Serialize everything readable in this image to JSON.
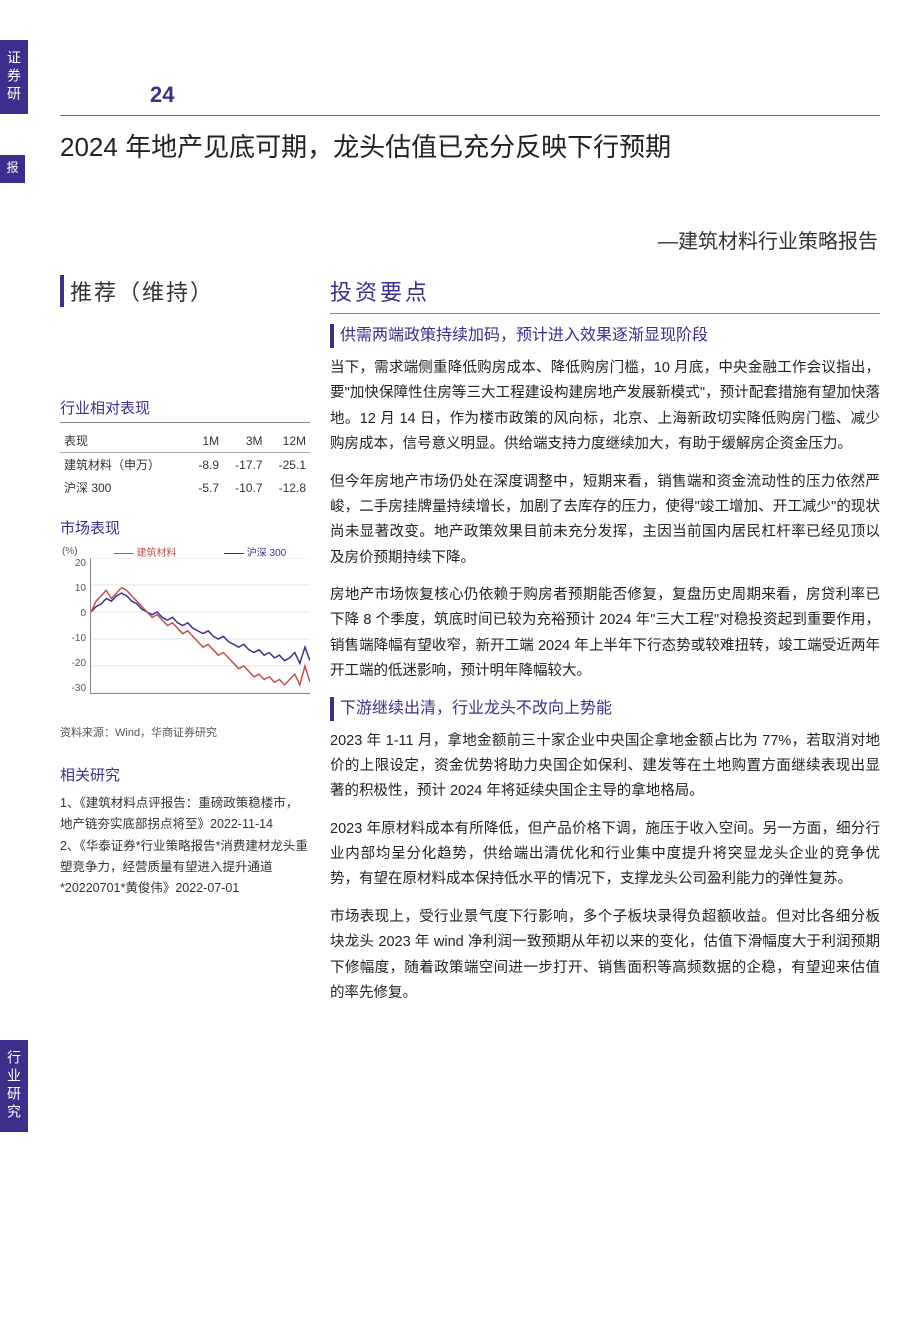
{
  "side_labels": {
    "top1": "证券研",
    "top2": "报",
    "bottom": "行业研究"
  },
  "page_number": "24",
  "title": "2024 年地产见底可期，龙头估值已充分反映下行预期",
  "subtitle": "—建筑材料行业策略报告",
  "rating": "推荐（维持）",
  "invest_points_hd": "投资要点",
  "perf_section_hd": "行业相对表现",
  "perf_table": {
    "headers": [
      "表现",
      "1M",
      "3M",
      "12M"
    ],
    "rows": [
      [
        "建筑材料（申万）",
        "-8.9",
        "-17.7",
        "-25.1"
      ],
      [
        "沪深 300",
        "-5.7",
        "-10.7",
        "-12.8"
      ]
    ]
  },
  "chart": {
    "title": "市场表现",
    "y_unit": "(%)",
    "legend": [
      "建筑材料",
      "沪深 300"
    ],
    "ylim": [
      -30,
      20
    ],
    "yticks": [
      "20",
      "10",
      "0",
      "-10",
      "-20",
      "-30"
    ],
    "colors": {
      "series1": "#c0504d",
      "series2": "#3d2e8c",
      "grid": "#cccccc",
      "bg": "#ffffff"
    },
    "series1_points": [
      0,
      4,
      6,
      8,
      5,
      7,
      9,
      8,
      6,
      4,
      2,
      0,
      -2,
      -1,
      -3,
      -5,
      -4,
      -6,
      -8,
      -7,
      -9,
      -11,
      -13,
      -12,
      -14,
      -16,
      -15,
      -17,
      -19,
      -21,
      -20,
      -22,
      -24,
      -23,
      -25,
      -24,
      -26,
      -25,
      -27,
      -25,
      -23,
      -27,
      -20,
      -26
    ],
    "series2_points": [
      0,
      2,
      3,
      5,
      4,
      6,
      7,
      6,
      4,
      3,
      1,
      0,
      -1,
      0,
      -2,
      -3,
      -2,
      -4,
      -5,
      -4,
      -6,
      -7,
      -8,
      -7,
      -9,
      -10,
      -9,
      -11,
      -12,
      -13,
      -12,
      -14,
      -15,
      -14,
      -16,
      -15,
      -17,
      -16,
      -18,
      -17,
      -15,
      -19,
      -13,
      -18
    ],
    "line_width": 1.5,
    "fontsize": 10
  },
  "source": "资料来源：Wind，华商证券研究",
  "related_hd": "相关研究",
  "related_body": "1、《建筑材料点评报告：重磅政策稳楼市，地产链夯实底部拐点将至》2022-11-14\n2、《华泰证券*行业策略报告*消费建材龙头重塑竞争力，经营质量有望进入提升通道*20220701*黄俊伟》2022-07-01",
  "sections": [
    {
      "hd": "供需两端政策持续加码，预计进入效果逐渐显现阶段",
      "paras": [
        "当下，需求端侧重降低购房成本、降低购房门槛，10 月底，中央金融工作会议指出，要\"加快保障性住房等三大工程建设构建房地产发展新模式\"，预计配套措施有望加快落地。12 月 14 日，作为楼市政策的风向标，北京、上海新政切实降低购房门槛、减少购房成本，信号意义明显。供给端支持力度继续加大，有助于缓解房企资金压力。",
        "但今年房地产市场仍处在深度调整中，短期来看，销售端和资金流动性的压力依然严峻，二手房挂牌量持续增长，加剧了去库存的压力，使得\"竣工增加、开工减少\"的现状尚未显著改变。地产政策效果目前未充分发挥，主因当前国内居民杠杆率已经见顶以及房价预期持续下降。",
        "房地产市场恢复核心仍依赖于购房者预期能否修复，复盘历史周期来看，房贷利率已下降 8 个季度，筑底时间已较为充裕预计 2024 年\"三大工程\"对稳投资起到重要作用，销售端降幅有望收窄，新开工端 2024 年上半年下行态势或较难扭转，竣工端受近两年开工端的低迷影响，预计明年降幅较大。"
      ]
    },
    {
      "hd": "下游继续出清，行业龙头不改向上势能",
      "paras": [
        "2023 年 1-11 月，拿地金额前三十家企业中央国企拿地金额占比为 77%，若取消对地价的上限设定，资金优势将助力央国企如保利、建发等在土地购置方面继续表现出显著的积极性，预计 2024 年将延续央国企主导的拿地格局。",
        "2023 年原材料成本有所降低，但产品价格下调，施压于收入空间。另一方面，细分行业内部均呈分化趋势，供给端出清优化和行业集中度提升将突显龙头企业的竞争优势，有望在原材料成本保持低水平的情况下，支撑龙头公司盈利能力的弹性复苏。",
        "市场表现上，受行业景气度下行影响，多个子板块录得负超额收益。但对比各细分板块龙头 2023 年 wind 净利润一致预期从年初以来的变化，估值下滑幅度大于利润预期下修幅度，随着政策端空间进一步打开、销售面积等高频数据的企稳，有望迎来估值的率先修复。"
      ]
    }
  ]
}
